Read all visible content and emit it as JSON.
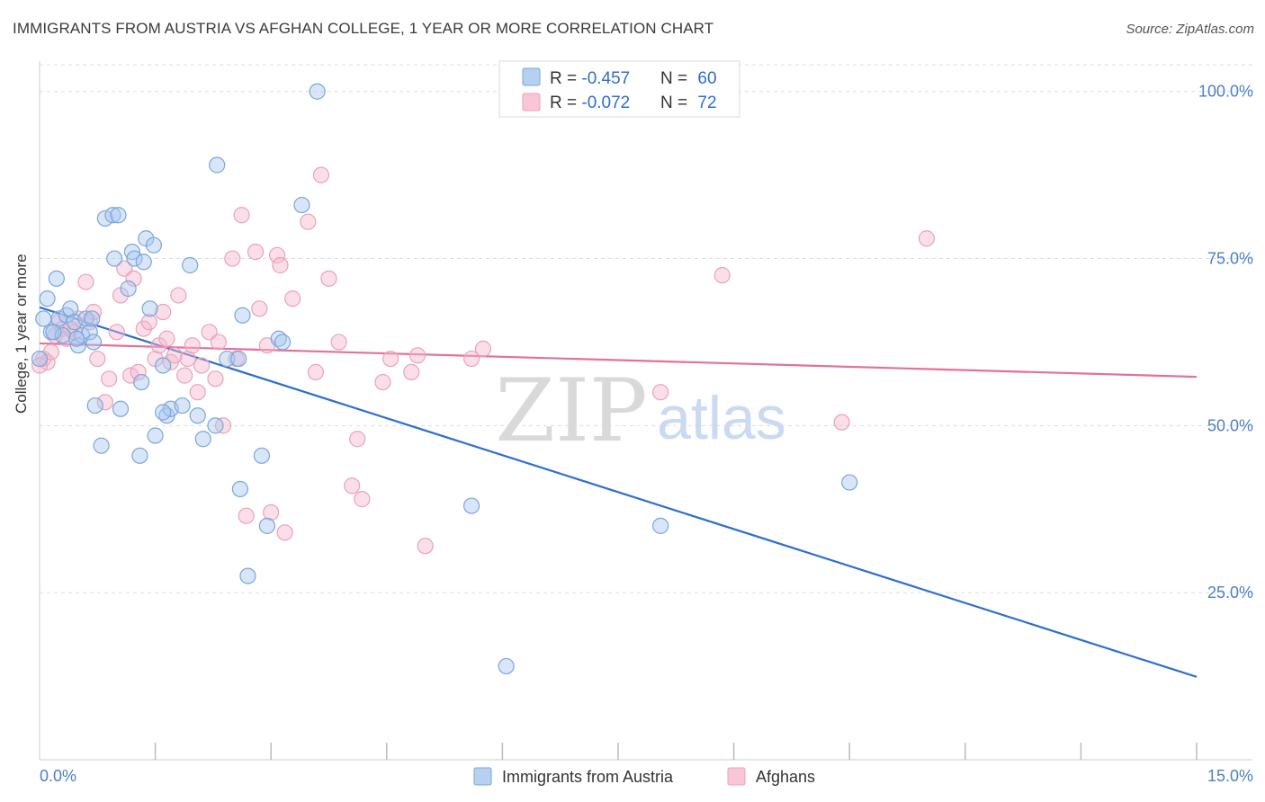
{
  "title": "IMMIGRANTS FROM AUSTRIA VS AFGHAN COLLEGE, 1 YEAR OR MORE CORRELATION CHART",
  "source": "Source: ZipAtlas.com",
  "colors": {
    "blue_fill": "#a8c8ef",
    "blue_stroke": "#7aa6dc",
    "blue_line": "#2c6fd0",
    "pink_fill": "#f6b8cc",
    "pink_stroke": "#eba1ba",
    "pink_line": "#e2719b",
    "tick_label": "#4a7fc9",
    "grid": "#dcdcdc"
  },
  "legend": {
    "rows": [
      {
        "r_label": "R = ",
        "r_value": "-0.457",
        "n_label": "N = ",
        "n_value": "60"
      },
      {
        "r_label": "R = ",
        "r_value": "-0.072",
        "n_label": "N = ",
        "n_value": "72"
      }
    ]
  },
  "watermark": {
    "zip": "ZIP",
    "atlas": "atlas"
  },
  "chart_data": {
    "type": "scatter",
    "title": "IMMIGRANTS FROM AUSTRIA VS AFGHAN COLLEGE, 1 YEAR OR MORE CORRELATION CHART",
    "xlabel": "",
    "ylabel": "College, 1 year or more",
    "xlim": [
      0,
      15
    ],
    "ylim": [
      0,
      104
    ],
    "x_tick_labels": [
      {
        "value": 0,
        "label": "0.0%"
      },
      {
        "value": 15,
        "label": "15.0%"
      }
    ],
    "y_tick_labels": [
      {
        "value": 25,
        "label": "25.0%"
      },
      {
        "value": 50,
        "label": "50.0%"
      },
      {
        "value": 75,
        "label": "75.0%"
      },
      {
        "value": 100,
        "label": "100.0%"
      }
    ],
    "x_minor_ticks": [
      1.5,
      3.0,
      4.5,
      6.0,
      7.5,
      9.0,
      10.5,
      12.0,
      13.5,
      15.0
    ],
    "series": [
      {
        "name": "Immigrants from Austria",
        "color": "blue",
        "trend": {
          "x": [
            0,
            15
          ],
          "y": [
            67.7,
            12.4
          ]
        },
        "points": [
          [
            0.05,
            66.0
          ],
          [
            0.1,
            69.0
          ],
          [
            0.15,
            64.0
          ],
          [
            0.22,
            72.0
          ],
          [
            0.25,
            66.0
          ],
          [
            0.3,
            63.5
          ],
          [
            0.35,
            66.5
          ],
          [
            0.4,
            67.5
          ],
          [
            0.45,
            65.5
          ],
          [
            0.5,
            62.0
          ],
          [
            0.55,
            63.5
          ],
          [
            0.6,
            66.0
          ],
          [
            0.65,
            64.0
          ],
          [
            0.7,
            62.5
          ],
          [
            0.72,
            53.0
          ],
          [
            0.8,
            47.0
          ],
          [
            0.85,
            81.0
          ],
          [
            0.95,
            81.5
          ],
          [
            0.97,
            75.0
          ],
          [
            1.05,
            52.5
          ],
          [
            1.15,
            70.5
          ],
          [
            1.2,
            76.0
          ],
          [
            1.23,
            75.0
          ],
          [
            1.3,
            45.5
          ],
          [
            1.32,
            56.5
          ],
          [
            1.35,
            74.5
          ],
          [
            1.38,
            78.0
          ],
          [
            1.43,
            67.5
          ],
          [
            1.48,
            77.0
          ],
          [
            1.5,
            48.5
          ],
          [
            1.6,
            59.0
          ],
          [
            1.65,
            51.5
          ],
          [
            1.7,
            52.5
          ],
          [
            1.85,
            53.0
          ],
          [
            1.95,
            74.0
          ],
          [
            2.05,
            51.5
          ],
          [
            2.12,
            48.0
          ],
          [
            2.28,
            50.0
          ],
          [
            2.3,
            89.0
          ],
          [
            2.43,
            60.0
          ],
          [
            2.58,
            60.0
          ],
          [
            2.6,
            40.5
          ],
          [
            2.63,
            66.5
          ],
          [
            2.7,
            27.5
          ],
          [
            2.88,
            45.5
          ],
          [
            2.95,
            35.0
          ],
          [
            3.1,
            63.0
          ],
          [
            3.15,
            62.5
          ],
          [
            3.4,
            83.0
          ],
          [
            3.6,
            100.0
          ],
          [
            5.6,
            38.0
          ],
          [
            6.05,
            14.0
          ],
          [
            8.05,
            35.0
          ],
          [
            10.5,
            41.5
          ],
          [
            0.0,
            60.0
          ],
          [
            0.18,
            64.0
          ],
          [
            0.48,
            63.0
          ],
          [
            0.68,
            66.0
          ],
          [
            1.02,
            81.5
          ],
          [
            1.6,
            52.0
          ]
        ]
      },
      {
        "name": "Afghans",
        "color": "pink",
        "trend": {
          "x": [
            0,
            15
          ],
          "y": [
            62.3,
            57.3
          ]
        },
        "points": [
          [
            0.05,
            60.0
          ],
          [
            0.1,
            59.5
          ],
          [
            0.15,
            61.0
          ],
          [
            0.2,
            63.5
          ],
          [
            0.25,
            65.5
          ],
          [
            0.3,
            64.5
          ],
          [
            0.35,
            63.0
          ],
          [
            0.45,
            64.0
          ],
          [
            0.5,
            66.0
          ],
          [
            0.6,
            71.5
          ],
          [
            0.65,
            65.5
          ],
          [
            0.7,
            67.0
          ],
          [
            0.75,
            60.0
          ],
          [
            0.85,
            53.5
          ],
          [
            0.9,
            57.0
          ],
          [
            1.0,
            64.0
          ],
          [
            1.05,
            69.5
          ],
          [
            1.1,
            73.5
          ],
          [
            1.18,
            57.5
          ],
          [
            1.22,
            72.0
          ],
          [
            1.28,
            58.0
          ],
          [
            1.35,
            64.5
          ],
          [
            1.42,
            65.5
          ],
          [
            1.5,
            60.0
          ],
          [
            1.55,
            62.0
          ],
          [
            1.6,
            67.0
          ],
          [
            1.65,
            63.0
          ],
          [
            1.7,
            59.5
          ],
          [
            1.75,
            60.5
          ],
          [
            1.8,
            69.5
          ],
          [
            1.88,
            57.5
          ],
          [
            1.92,
            60.0
          ],
          [
            1.98,
            62.0
          ],
          [
            2.05,
            55.0
          ],
          [
            2.1,
            59.0
          ],
          [
            2.2,
            64.0
          ],
          [
            2.28,
            57.0
          ],
          [
            2.32,
            62.5
          ],
          [
            2.38,
            50.0
          ],
          [
            2.5,
            75.0
          ],
          [
            2.55,
            60.0
          ],
          [
            2.62,
            81.5
          ],
          [
            2.68,
            36.5
          ],
          [
            2.8,
            76.0
          ],
          [
            2.85,
            67.5
          ],
          [
            2.95,
            62.0
          ],
          [
            3.0,
            37.0
          ],
          [
            3.08,
            75.5
          ],
          [
            3.12,
            74.0
          ],
          [
            3.18,
            34.0
          ],
          [
            3.28,
            69.0
          ],
          [
            3.48,
            80.5
          ],
          [
            3.58,
            58.0
          ],
          [
            3.65,
            87.5
          ],
          [
            3.75,
            72.0
          ],
          [
            3.88,
            62.5
          ],
          [
            4.05,
            41.0
          ],
          [
            4.12,
            48.0
          ],
          [
            4.18,
            39.0
          ],
          [
            4.45,
            56.5
          ],
          [
            4.55,
            60.0
          ],
          [
            4.82,
            58.0
          ],
          [
            4.9,
            60.5
          ],
          [
            5.0,
            32.0
          ],
          [
            5.6,
            60.0
          ],
          [
            5.75,
            61.5
          ],
          [
            8.05,
            55.0
          ],
          [
            8.85,
            72.5
          ],
          [
            10.4,
            50.5
          ],
          [
            11.5,
            78.0
          ],
          [
            0.0,
            59.0
          ],
          [
            0.4,
            64.5
          ]
        ]
      }
    ],
    "legend_entries": [
      "Immigrants from Austria",
      "Afghans"
    ]
  }
}
